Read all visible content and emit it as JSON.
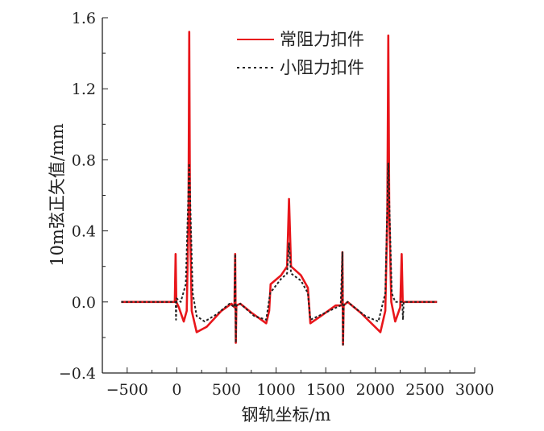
{
  "chart_data": {
    "type": "line",
    "title": "",
    "xlabel": "钢轨坐标/m",
    "ylabel": "10m弦正矢值/mm",
    "xlim": [
      -750,
      3000
    ],
    "ylim": [
      -0.4,
      1.6
    ],
    "xticks": [
      -500,
      0,
      500,
      1000,
      1500,
      2000,
      2500,
      3000
    ],
    "xtick_labels": [
      "−500",
      "0",
      "500",
      "1000",
      "1500",
      "2000",
      "2500",
      "3000"
    ],
    "yticks": [
      -0.4,
      0.0,
      0.4,
      0.8,
      1.2,
      1.6
    ],
    "ytick_labels": [
      "−0.4",
      "0.0",
      "0.4",
      "0.8",
      "1.2",
      "1.6"
    ],
    "grid": false,
    "legend_position": "top-right",
    "series": [
      {
        "name": "常阻力扣件",
        "color": "#e8161b",
        "style": "solid",
        "points": [
          [
            -560,
            0
          ],
          [
            -20,
            0
          ],
          [
            -12,
            0.27
          ],
          [
            -5,
            0
          ],
          [
            20,
            -0.03
          ],
          [
            70,
            -0.11
          ],
          [
            100,
            -0.05
          ],
          [
            118,
            0.5
          ],
          [
            125,
            1.52
          ],
          [
            132,
            0.5
          ],
          [
            150,
            -0.05
          ],
          [
            200,
            -0.17
          ],
          [
            300,
            -0.14
          ],
          [
            450,
            -0.05
          ],
          [
            550,
            -0.01
          ],
          [
            580,
            -0.03
          ],
          [
            588,
            0.27
          ],
          [
            594,
            -0.23
          ],
          [
            600,
            -0.02
          ],
          [
            640,
            -0.01
          ],
          [
            750,
            -0.06
          ],
          [
            900,
            -0.12
          ],
          [
            930,
            -0.05
          ],
          [
            945,
            0.1
          ],
          [
            1050,
            0.15
          ],
          [
            1110,
            0.2
          ],
          [
            1130,
            0.58
          ],
          [
            1150,
            0.2
          ],
          [
            1250,
            0.15
          ],
          [
            1320,
            0.08
          ],
          [
            1345,
            -0.12
          ],
          [
            1450,
            -0.08
          ],
          [
            1600,
            -0.02
          ],
          [
            1660,
            -0.02
          ],
          [
            1668,
            0.28
          ],
          [
            1674,
            -0.24
          ],
          [
            1680,
            -0.02
          ],
          [
            1720,
            0
          ],
          [
            1850,
            -0.06
          ],
          [
            2050,
            -0.17
          ],
          [
            2100,
            -0.05
          ],
          [
            2120,
            0.5
          ],
          [
            2130,
            1.5
          ],
          [
            2140,
            0.5
          ],
          [
            2160,
            0
          ],
          [
            2200,
            -0.11
          ],
          [
            2250,
            -0.03
          ],
          [
            2265,
            0.27
          ],
          [
            2275,
            0
          ],
          [
            2620,
            0
          ]
        ]
      },
      {
        "name": "小阻力扣件",
        "color": "#222222",
        "style": "dotted",
        "points": [
          [
            -560,
            0
          ],
          [
            -12,
            0
          ],
          [
            -8,
            -0.1
          ],
          [
            -2,
            0.02
          ],
          [
            40,
            0
          ],
          [
            90,
            0.1
          ],
          [
            125,
            0.78
          ],
          [
            160,
            0.05
          ],
          [
            200,
            -0.08
          ],
          [
            280,
            -0.11
          ],
          [
            400,
            -0.07
          ],
          [
            530,
            -0.01
          ],
          [
            580,
            -0.03
          ],
          [
            588,
            0.27
          ],
          [
            594,
            -0.23
          ],
          [
            600,
            -0.02
          ],
          [
            640,
            -0.01
          ],
          [
            780,
            -0.08
          ],
          [
            900,
            -0.1
          ],
          [
            940,
            0.05
          ],
          [
            1050,
            0.13
          ],
          [
            1110,
            0.16
          ],
          [
            1130,
            0.33
          ],
          [
            1150,
            0.16
          ],
          [
            1250,
            0.12
          ],
          [
            1320,
            0.05
          ],
          [
            1345,
            -0.1
          ],
          [
            1500,
            -0.06
          ],
          [
            1650,
            -0.02
          ],
          [
            1668,
            0.28
          ],
          [
            1674,
            -0.24
          ],
          [
            1680,
            -0.02
          ],
          [
            1720,
            0
          ],
          [
            1900,
            -0.08
          ],
          [
            2030,
            -0.11
          ],
          [
            2100,
            0.05
          ],
          [
            2130,
            0.78
          ],
          [
            2165,
            0.05
          ],
          [
            2200,
            0
          ],
          [
            2270,
            0
          ],
          [
            2278,
            -0.1
          ],
          [
            2285,
            0
          ],
          [
            2620,
            0
          ]
        ]
      }
    ]
  }
}
